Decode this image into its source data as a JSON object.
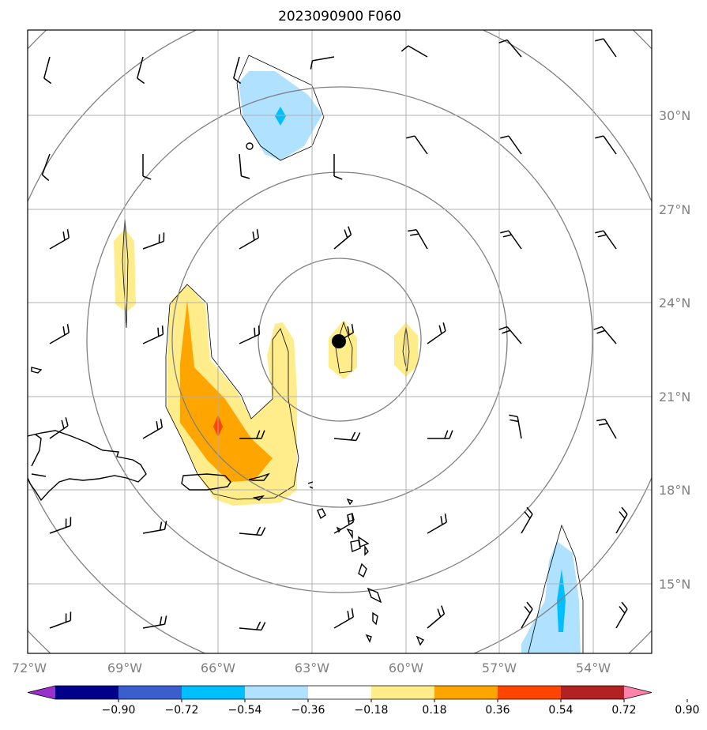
{
  "title": "2023090900 F060",
  "lat_labels": [
    "30°N",
    "27°N",
    "24°N",
    "21°N",
    "18°N",
    "15°N"
  ],
  "lon_labels": [
    "72°W",
    "69°W",
    "66°W",
    "63°W",
    "60°W",
    "57°W",
    "54°W"
  ],
  "colorbar": {
    "labels": [
      "−0.90",
      "−0.72",
      "−0.54",
      "−0.36",
      "−0.18",
      "0.18",
      "0.36",
      "0.54",
      "0.72",
      "0.90"
    ],
    "colors": [
      "#9932cc",
      "#00008b",
      "#3a5fcd",
      "#00bfff",
      "#b0e2ff",
      "#ffffff",
      "#ffec8b",
      "#ffa500",
      "#ff4500",
      "#b22222",
      "#ff82ab"
    ]
  },
  "map": {
    "lon_range": [
      -72,
      -52
    ],
    "lat_range": [
      13,
      32.5
    ],
    "grid": true,
    "storm_center": {
      "lon": -61.9,
      "lat": 22.8
    },
    "range_rings": 5
  }
}
